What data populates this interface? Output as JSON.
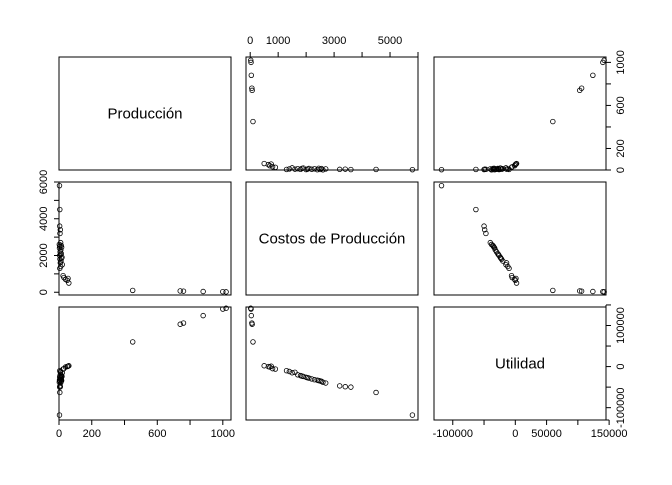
{
  "chart_data": {
    "type": "scatter",
    "variables": [
      {
        "label": "Producción",
        "range": [
          0,
          1050
        ],
        "ticks": [
          0,
          200,
          400,
          600,
          800,
          1000
        ],
        "tick_labels": [
          "0",
          "200",
          "600",
          "1000"
        ],
        "tick_labels_right": [
          "0",
          "200",
          "600",
          "1000"
        ]
      },
      {
        "label": "Costos de Producción",
        "range": [
          -150,
          6000
        ],
        "ticks": [
          0,
          1000,
          2000,
          3000,
          4000,
          5000,
          6000
        ],
        "tick_labels": [
          "0",
          "1000",
          "3000",
          "5000"
        ],
        "tick_labels_left": [
          "0",
          "2000",
          "4000",
          "6000"
        ]
      },
      {
        "label": "Utilidad",
        "range": [
          -130000,
          145000
        ],
        "ticks": [
          -100000,
          -50000,
          0,
          50000,
          100000,
          150000
        ],
        "tick_labels": [
          "-100000",
          "0",
          "50000",
          "150000"
        ],
        "tick_labels_right": [
          "-100000",
          "0",
          "100000"
        ]
      }
    ],
    "points": [
      {
        "produccion": 1000,
        "costos": 30,
        "utilidad": 140000
      },
      {
        "produccion": 1020,
        "costos": 20,
        "utilidad": 142000
      },
      {
        "produccion": 880,
        "costos": 40,
        "utilidad": 124000
      },
      {
        "produccion": 760,
        "costos": 60,
        "utilidad": 106000
      },
      {
        "produccion": 740,
        "costos": 70,
        "utilidad": 103000
      },
      {
        "produccion": 450,
        "costos": 100,
        "utilidad": 60000
      },
      {
        "produccion": 60,
        "costos": 500,
        "utilidad": 2000
      },
      {
        "produccion": 40,
        "costos": 700,
        "utilidad": -1000
      },
      {
        "produccion": 50,
        "costos": 650,
        "utilidad": 0
      },
      {
        "produccion": 55,
        "costos": 750,
        "utilidad": 1000
      },
      {
        "produccion": 30,
        "costos": 800,
        "utilidad": -5000
      },
      {
        "produccion": 25,
        "costos": 900,
        "utilidad": -6000
      },
      {
        "produccion": 5,
        "costos": 1300,
        "utilidad": -10000
      },
      {
        "produccion": 10,
        "costos": 1400,
        "utilidad": -12000
      },
      {
        "produccion": 20,
        "costos": 1500,
        "utilidad": -15000
      },
      {
        "produccion": 8,
        "costos": 1600,
        "utilidad": -14000
      },
      {
        "produccion": 12,
        "costos": 1700,
        "utilidad": -20000
      },
      {
        "produccion": 6,
        "costos": 1800,
        "utilidad": -22000
      },
      {
        "produccion": 15,
        "costos": 1850,
        "utilidad": -23000
      },
      {
        "produccion": 18,
        "costos": 1900,
        "utilidad": -24000
      },
      {
        "produccion": 4,
        "costos": 2000,
        "utilidad": -26000
      },
      {
        "produccion": 9,
        "costos": 2050,
        "utilidad": -27000
      },
      {
        "produccion": 14,
        "costos": 2100,
        "utilidad": -28000
      },
      {
        "produccion": 7,
        "costos": 2200,
        "utilidad": -30000
      },
      {
        "produccion": 11,
        "costos": 2300,
        "utilidad": -32000
      },
      {
        "produccion": 3,
        "costos": 2400,
        "utilidad": -33000
      },
      {
        "produccion": 16,
        "costos": 2450,
        "utilidad": -34000
      },
      {
        "produccion": 5,
        "costos": 2500,
        "utilidad": -35000
      },
      {
        "produccion": 13,
        "costos": 2550,
        "utilidad": -36000
      },
      {
        "produccion": 2,
        "costos": 2600,
        "utilidad": -38000
      },
      {
        "produccion": 10,
        "costos": 2700,
        "utilidad": -40000
      },
      {
        "produccion": 6,
        "costos": 3200,
        "utilidad": -47000
      },
      {
        "produccion": 8,
        "costos": 3400,
        "utilidad": -49000
      },
      {
        "produccion": 4,
        "costos": 3600,
        "utilidad": -50000
      },
      {
        "produccion": 5,
        "costos": 4500,
        "utilidad": -63000
      },
      {
        "produccion": 3,
        "costos": 5800,
        "utilidad": -118000
      }
    ]
  }
}
